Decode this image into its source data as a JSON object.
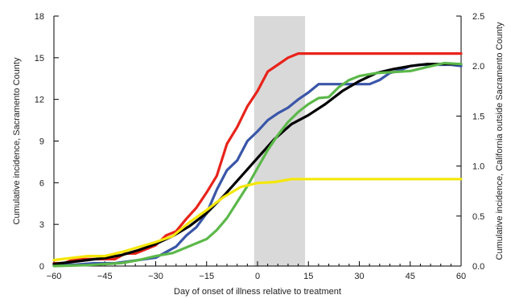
{
  "chart_data": {
    "type": "line",
    "title": "",
    "xlabel": "Day of onset of illness relative to treatment",
    "ylabel_left": "Cumulative incidence, Sacramento County",
    "ylabel_right": "Cumulative incidence, California outside Sacramento County",
    "xlim": [
      -60,
      60
    ],
    "ylim_left": [
      0,
      18
    ],
    "ylim_right": [
      0,
      2.5
    ],
    "x_ticks": [
      -60,
      -45,
      -30,
      -15,
      0,
      15,
      30,
      45,
      60
    ],
    "x_tick_labels": [
      "−60",
      "−45",
      "−30",
      "−15",
      "0",
      "15",
      "30",
      "45",
      "60"
    ],
    "y_left_ticks": [
      0,
      3,
      6,
      9,
      12,
      15,
      18
    ],
    "y_left_tick_labels": [
      "0",
      "3",
      "6",
      "9",
      "12",
      "15",
      "18"
    ],
    "y_right_ticks": [
      0,
      0.5,
      1.0,
      1.5,
      2.0,
      2.5
    ],
    "y_right_tick_labels": [
      "0.0",
      "0.5",
      "1.0",
      "1.5",
      "2.0",
      "2.5"
    ],
    "shaded_region": {
      "x_start": -1,
      "x_end": 14,
      "color": "#d9d9d9"
    },
    "grid": false,
    "legend": "none",
    "series": [
      {
        "color": "#e8231a",
        "axis": "left",
        "points": [
          [
            -60,
            0.2
          ],
          [
            -57,
            0.2
          ],
          [
            -54,
            0.5
          ],
          [
            -51,
            0.5
          ],
          [
            -48,
            0.5
          ],
          [
            -45,
            0.5
          ],
          [
            -42,
            0.5
          ],
          [
            -39,
            0.9
          ],
          [
            -36,
            0.9
          ],
          [
            -33,
            1.2
          ],
          [
            -30,
            1.5
          ],
          [
            -27,
            2.2
          ],
          [
            -24,
            2.5
          ],
          [
            -21,
            3.4
          ],
          [
            -18,
            4.2
          ],
          [
            -15,
            5.3
          ],
          [
            -12,
            6.5
          ],
          [
            -9,
            8.8
          ],
          [
            -6,
            10.0
          ],
          [
            -3,
            11.5
          ],
          [
            0,
            12.6
          ],
          [
            3,
            14.0
          ],
          [
            6,
            14.5
          ],
          [
            9,
            15.0
          ],
          [
            12,
            15.3
          ],
          [
            15,
            15.3
          ],
          [
            21,
            15.3
          ],
          [
            30,
            15.3
          ],
          [
            40,
            15.3
          ],
          [
            50,
            15.3
          ],
          [
            60,
            15.3
          ]
        ]
      },
      {
        "color": "#3a56a8",
        "axis": "left",
        "points": [
          [
            -60,
            0.1
          ],
          [
            -54,
            0.1
          ],
          [
            -48,
            0.2
          ],
          [
            -42,
            0.2
          ],
          [
            -36,
            0.4
          ],
          [
            -30,
            0.6
          ],
          [
            -27,
            1.0
          ],
          [
            -24,
            1.4
          ],
          [
            -21,
            2.2
          ],
          [
            -18,
            2.8
          ],
          [
            -15,
            3.8
          ],
          [
            -12,
            5.5
          ],
          [
            -9,
            6.9
          ],
          [
            -6,
            7.6
          ],
          [
            -3,
            9.0
          ],
          [
            0,
            9.7
          ],
          [
            3,
            10.5
          ],
          [
            6,
            11.0
          ],
          [
            9,
            11.4
          ],
          [
            12,
            12.0
          ],
          [
            15,
            12.5
          ],
          [
            18,
            13.1
          ],
          [
            21,
            13.1
          ],
          [
            24,
            13.1
          ],
          [
            27,
            13.1
          ],
          [
            30,
            13.1
          ],
          [
            33,
            13.1
          ],
          [
            36,
            13.4
          ],
          [
            39,
            13.9
          ],
          [
            42,
            14.1
          ],
          [
            45,
            14.4
          ],
          [
            48,
            14.5
          ],
          [
            51,
            14.5
          ],
          [
            54,
            14.5
          ],
          [
            57,
            14.5
          ],
          [
            60,
            14.4
          ]
        ]
      },
      {
        "color": "#000000",
        "axis": "right",
        "points": [
          [
            -60,
            0.02
          ],
          [
            -55,
            0.04
          ],
          [
            -50,
            0.06
          ],
          [
            -45,
            0.08
          ],
          [
            -40,
            0.11
          ],
          [
            -35,
            0.16
          ],
          [
            -30,
            0.22
          ],
          [
            -25,
            0.3
          ],
          [
            -20,
            0.4
          ],
          [
            -15,
            0.53
          ],
          [
            -10,
            0.7
          ],
          [
            -5,
            0.89
          ],
          [
            0,
            1.08
          ],
          [
            5,
            1.27
          ],
          [
            10,
            1.42
          ],
          [
            15,
            1.51
          ],
          [
            20,
            1.62
          ],
          [
            25,
            1.75
          ],
          [
            30,
            1.85
          ],
          [
            35,
            1.93
          ],
          [
            40,
            1.97
          ],
          [
            45,
            2.0
          ],
          [
            50,
            2.02
          ],
          [
            55,
            2.02
          ],
          [
            60,
            2.02
          ]
        ]
      },
      {
        "color": "#5cb84a",
        "axis": "right",
        "points": [
          [
            -60,
            0.0
          ],
          [
            -50,
            0.01
          ],
          [
            -40,
            0.03
          ],
          [
            -35,
            0.06
          ],
          [
            -30,
            0.1
          ],
          [
            -25,
            0.13
          ],
          [
            -20,
            0.2
          ],
          [
            -15,
            0.27
          ],
          [
            -12,
            0.36
          ],
          [
            -9,
            0.48
          ],
          [
            -6,
            0.64
          ],
          [
            -3,
            0.8
          ],
          [
            0,
            0.98
          ],
          [
            3,
            1.16
          ],
          [
            6,
            1.31
          ],
          [
            9,
            1.44
          ],
          [
            12,
            1.54
          ],
          [
            15,
            1.62
          ],
          [
            18,
            1.68
          ],
          [
            21,
            1.69
          ],
          [
            24,
            1.79
          ],
          [
            27,
            1.86
          ],
          [
            30,
            1.9
          ],
          [
            35,
            1.93
          ],
          [
            40,
            1.94
          ],
          [
            45,
            1.95
          ],
          [
            50,
            1.99
          ],
          [
            55,
            2.03
          ],
          [
            60,
            2.02
          ]
        ]
      },
      {
        "color": "#f4e70a",
        "axis": "right",
        "points": [
          [
            -60,
            0.06
          ],
          [
            -50,
            0.1
          ],
          [
            -45,
            0.1
          ],
          [
            -40,
            0.14
          ],
          [
            -35,
            0.19
          ],
          [
            -30,
            0.24
          ],
          [
            -25,
            0.3
          ],
          [
            -20,
            0.44
          ],
          [
            -15,
            0.56
          ],
          [
            -10,
            0.69
          ],
          [
            -5,
            0.79
          ],
          [
            0,
            0.83
          ],
          [
            5,
            0.84
          ],
          [
            10,
            0.87
          ],
          [
            15,
            0.87
          ],
          [
            20,
            0.87
          ],
          [
            30,
            0.87
          ],
          [
            40,
            0.87
          ],
          [
            50,
            0.87
          ],
          [
            60,
            0.87
          ]
        ]
      }
    ]
  }
}
